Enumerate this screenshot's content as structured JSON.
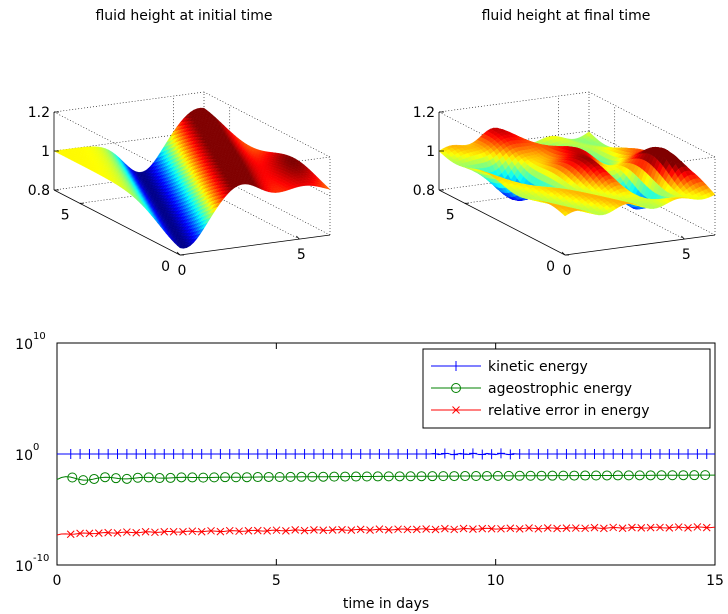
{
  "chart_data": [
    {
      "type": "surface",
      "title": "fluid height at initial time",
      "zlim": [
        0.8,
        1.2
      ],
      "z_ticks": [
        "0.8",
        "1",
        "1.2"
      ],
      "x_ticks": [
        "0",
        "5"
      ],
      "y_ticks": [
        "0",
        "5"
      ],
      "xlim": [
        0,
        6.28
      ],
      "ylim": [
        0,
        6.28
      ],
      "colormap": "jet",
      "grid": true,
      "description_values": {
        "min": 0.83,
        "max": 1.1,
        "base": 1.0
      }
    },
    {
      "type": "surface",
      "title": "fluid height at final time",
      "zlim": [
        0.8,
        1.2
      ],
      "z_ticks": [
        "0.8",
        "1",
        "1.2"
      ],
      "x_ticks": [
        "0",
        "5"
      ],
      "y_ticks": [
        "0",
        "5"
      ],
      "xlim": [
        0,
        6.28
      ],
      "ylim": [
        0,
        6.28
      ],
      "colormap": "jet",
      "grid": true
    },
    {
      "type": "line",
      "xlabel": "time in days",
      "ylabel": "",
      "xlim": [
        0,
        15
      ],
      "ylim": [
        1e-10,
        10000000000.0
      ],
      "y_scale": "log",
      "x_ticks": [
        "0",
        "5",
        "10",
        "15"
      ],
      "y_ticks": [
        {
          "base": "10",
          "exp": "-10"
        },
        {
          "base": "10",
          "exp": "0"
        },
        {
          "base": "10",
          "exp": "10"
        }
      ],
      "legend_position": "top-right",
      "series": [
        {
          "name": "kinetic energy",
          "color": "#0000ff",
          "marker": "+",
          "log10_y_start": 0.0,
          "log10_y_end": 0.0
        },
        {
          "name": "ageostrophic energy",
          "color": "#008000",
          "marker": "o",
          "log10_y_start": -2.3,
          "log10_y_end": -1.9
        },
        {
          "name": "relative error in energy",
          "color": "#ff0000",
          "marker": "x",
          "log10_y_start": -7.3,
          "log10_y_end": -6.6
        }
      ]
    }
  ]
}
